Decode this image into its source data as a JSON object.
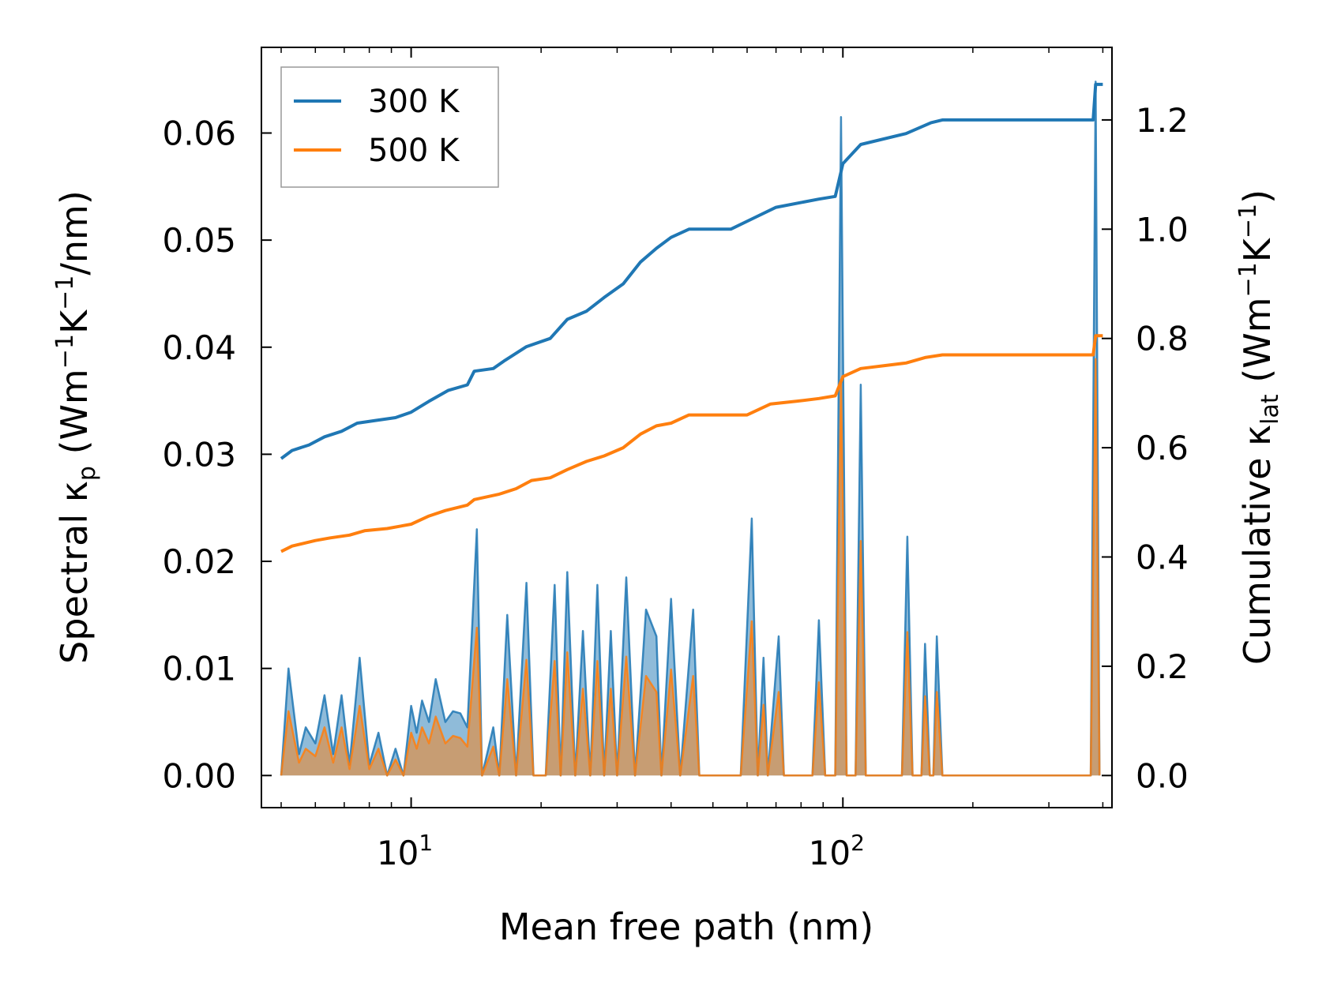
{
  "chart_data": {
    "type": "line",
    "xlabel": "Mean free path (nm)",
    "ylabel_left": {
      "main": "Spectral κ",
      "sub": "p",
      "unit_pre": " (Wm",
      "unit_sup1": "−1",
      "unit_mid": "K",
      "unit_sup2": "−1",
      "unit_post": "/nm)"
    },
    "ylabel_right": {
      "main": "Cumulative κ",
      "sub": "lat",
      "unit_pre": " (Wm",
      "unit_sup1": "−1",
      "unit_mid": "K",
      "unit_sup2": "−1",
      "unit_post": ")"
    },
    "xscale": "log",
    "xlim": [
      4.5,
      420
    ],
    "ylim_left": [
      -0.003,
      0.068
    ],
    "ylim_right": [
      -0.0588,
      1.3328
    ],
    "xticks": [
      {
        "value": 10,
        "base": "10",
        "exp": "1"
      },
      {
        "value": 100,
        "base": "10",
        "exp": "2"
      }
    ],
    "yticks_left": [
      {
        "value": 0.0,
        "label": "0.00"
      },
      {
        "value": 0.01,
        "label": "0.01"
      },
      {
        "value": 0.02,
        "label": "0.02"
      },
      {
        "value": 0.03,
        "label": "0.03"
      },
      {
        "value": 0.04,
        "label": "0.04"
      },
      {
        "value": 0.05,
        "label": "0.05"
      },
      {
        "value": 0.06,
        "label": "0.06"
      }
    ],
    "yticks_right": [
      {
        "value": 0.0,
        "label": "0.0"
      },
      {
        "value": 0.2,
        "label": "0.2"
      },
      {
        "value": 0.4,
        "label": "0.4"
      },
      {
        "value": 0.6,
        "label": "0.6"
      },
      {
        "value": 0.8,
        "label": "0.8"
      },
      {
        "value": 1.0,
        "label": "1.0"
      },
      {
        "value": 1.2,
        "label": "1.2"
      }
    ],
    "legend": {
      "position": "top-left",
      "entries": [
        "300 K",
        "500 K"
      ]
    },
    "series": [
      {
        "name": "300 K",
        "color": "#1f77b4",
        "cumulative": [
          [
            5.0,
            0.58
          ],
          [
            5.3,
            0.595
          ],
          [
            5.8,
            0.605
          ],
          [
            6.3,
            0.62
          ],
          [
            6.9,
            0.63
          ],
          [
            7.5,
            0.645
          ],
          [
            8.3,
            0.65
          ],
          [
            9.2,
            0.655
          ],
          [
            10.0,
            0.665
          ],
          [
            11.0,
            0.685
          ],
          [
            12.2,
            0.705
          ],
          [
            13.5,
            0.715
          ],
          [
            14.0,
            0.74
          ],
          [
            15.5,
            0.745
          ],
          [
            16.5,
            0.76
          ],
          [
            18.5,
            0.785
          ],
          [
            21.0,
            0.8
          ],
          [
            23.0,
            0.835
          ],
          [
            25.5,
            0.85
          ],
          [
            28.0,
            0.875
          ],
          [
            31.0,
            0.9
          ],
          [
            34.0,
            0.94
          ],
          [
            37.0,
            0.965
          ],
          [
            40.0,
            0.985
          ],
          [
            44.0,
            1.0
          ],
          [
            55.0,
            1.0
          ],
          [
            62.0,
            1.02
          ],
          [
            70.0,
            1.04
          ],
          [
            88.0,
            1.055
          ],
          [
            96.0,
            1.06
          ],
          [
            100.0,
            1.12
          ],
          [
            110.0,
            1.155
          ],
          [
            140.0,
            1.175
          ],
          [
            160.0,
            1.195
          ],
          [
            170.0,
            1.2
          ],
          [
            380.0,
            1.2
          ],
          [
            385.0,
            1.265
          ],
          [
            400.0,
            1.265
          ]
        ],
        "spectral": [
          [
            5.0,
            0.0
          ],
          [
            5.2,
            0.01
          ],
          [
            5.5,
            0.002
          ],
          [
            5.7,
            0.0045
          ],
          [
            6.0,
            0.003
          ],
          [
            6.3,
            0.0075
          ],
          [
            6.6,
            0.002
          ],
          [
            6.9,
            0.0075
          ],
          [
            7.2,
            0.001
          ],
          [
            7.6,
            0.011
          ],
          [
            8.0,
            0.001
          ],
          [
            8.4,
            0.004
          ],
          [
            8.8,
            0.0
          ],
          [
            9.2,
            0.0025
          ],
          [
            9.6,
            0.0
          ],
          [
            10.0,
            0.0065
          ],
          [
            10.3,
            0.004
          ],
          [
            10.6,
            0.007
          ],
          [
            11.0,
            0.005
          ],
          [
            11.4,
            0.009
          ],
          [
            12.0,
            0.005
          ],
          [
            12.5,
            0.006
          ],
          [
            13.0,
            0.0058
          ],
          [
            13.5,
            0.0045
          ],
          [
            14.2,
            0.023
          ],
          [
            14.6,
            0.0
          ],
          [
            15.5,
            0.0045
          ],
          [
            16.0,
            0.0
          ],
          [
            16.7,
            0.015
          ],
          [
            17.5,
            0.0
          ],
          [
            18.5,
            0.018
          ],
          [
            19.2,
            0.0
          ],
          [
            20.5,
            0.0
          ],
          [
            21.5,
            0.0178
          ],
          [
            22.2,
            0.0
          ],
          [
            23.0,
            0.019
          ],
          [
            24.0,
            0.0
          ],
          [
            25.0,
            0.0135
          ],
          [
            26.0,
            0.0
          ],
          [
            27.0,
            0.0178
          ],
          [
            28.0,
            0.0
          ],
          [
            29.0,
            0.0135
          ],
          [
            30.0,
            0.0
          ],
          [
            31.5,
            0.0185
          ],
          [
            33.0,
            0.0
          ],
          [
            35.0,
            0.0155
          ],
          [
            37.0,
            0.013
          ],
          [
            38.0,
            0.0
          ],
          [
            40.0,
            0.0165
          ],
          [
            42.0,
            0.0
          ],
          [
            45.0,
            0.0155
          ],
          [
            46.5,
            0.0
          ],
          [
            58.0,
            0.0
          ],
          [
            61.5,
            0.024
          ],
          [
            63.5,
            0.0
          ],
          [
            65.5,
            0.011
          ],
          [
            67.0,
            0.0
          ],
          [
            71.0,
            0.013
          ],
          [
            73.0,
            0.0
          ],
          [
            85.0,
            0.0
          ],
          [
            88.0,
            0.0145
          ],
          [
            91.0,
            0.0
          ],
          [
            96.0,
            0.0
          ],
          [
            99.0,
            0.0615
          ],
          [
            102.0,
            0.0
          ],
          [
            107.0,
            0.0
          ],
          [
            110.0,
            0.0365
          ],
          [
            113.0,
            0.0
          ],
          [
            137.0,
            0.0
          ],
          [
            141.0,
            0.0223
          ],
          [
            145.0,
            0.0
          ],
          [
            152.0,
            0.0
          ],
          [
            155.0,
            0.0123
          ],
          [
            159.0,
            0.0
          ],
          [
            162.0,
            0.0
          ],
          [
            165.0,
            0.013
          ],
          [
            170.0,
            0.0
          ],
          [
            375.0,
            0.0
          ],
          [
            385.0,
            0.0648
          ],
          [
            393.0,
            0.0
          ]
        ]
      },
      {
        "name": "500 K",
        "color": "#ff7f0e",
        "cumulative": [
          [
            5.0,
            0.41
          ],
          [
            5.3,
            0.42
          ],
          [
            6.0,
            0.43
          ],
          [
            6.5,
            0.435
          ],
          [
            7.2,
            0.44
          ],
          [
            7.8,
            0.448
          ],
          [
            8.8,
            0.452
          ],
          [
            10.0,
            0.46
          ],
          [
            11.0,
            0.475
          ],
          [
            12.0,
            0.485
          ],
          [
            13.5,
            0.495
          ],
          [
            14.0,
            0.505
          ],
          [
            16.0,
            0.515
          ],
          [
            17.5,
            0.525
          ],
          [
            19.0,
            0.54
          ],
          [
            21.0,
            0.545
          ],
          [
            23.0,
            0.56
          ],
          [
            25.5,
            0.575
          ],
          [
            28.0,
            0.585
          ],
          [
            31.0,
            0.6
          ],
          [
            34.0,
            0.625
          ],
          [
            37.0,
            0.64
          ],
          [
            40.0,
            0.645
          ],
          [
            44.0,
            0.66
          ],
          [
            60.0,
            0.66
          ],
          [
            68.0,
            0.68
          ],
          [
            78.0,
            0.685
          ],
          [
            88.0,
            0.69
          ],
          [
            96.0,
            0.695
          ],
          [
            100.0,
            0.73
          ],
          [
            110.0,
            0.745
          ],
          [
            140.0,
            0.755
          ],
          [
            155.0,
            0.765
          ],
          [
            170.0,
            0.77
          ],
          [
            380.0,
            0.77
          ],
          [
            385.0,
            0.805
          ],
          [
            400.0,
            0.805
          ]
        ],
        "spectral": [
          [
            5.0,
            0.0
          ],
          [
            5.2,
            0.006
          ],
          [
            5.5,
            0.0012
          ],
          [
            5.7,
            0.0025
          ],
          [
            6.0,
            0.0018
          ],
          [
            6.3,
            0.0045
          ],
          [
            6.6,
            0.0012
          ],
          [
            6.9,
            0.0045
          ],
          [
            7.2,
            0.0006
          ],
          [
            7.6,
            0.0065
          ],
          [
            8.0,
            0.0006
          ],
          [
            8.4,
            0.0025
          ],
          [
            8.8,
            0.0
          ],
          [
            9.2,
            0.0015
          ],
          [
            9.6,
            0.0
          ],
          [
            10.0,
            0.004
          ],
          [
            10.3,
            0.0025
          ],
          [
            10.6,
            0.0045
          ],
          [
            11.0,
            0.003
          ],
          [
            11.4,
            0.0055
          ],
          [
            12.0,
            0.003
          ],
          [
            12.5,
            0.0037
          ],
          [
            13.0,
            0.0035
          ],
          [
            13.5,
            0.0027
          ],
          [
            14.2,
            0.0138
          ],
          [
            14.6,
            0.0
          ],
          [
            15.5,
            0.0027
          ],
          [
            16.0,
            0.0
          ],
          [
            16.7,
            0.009
          ],
          [
            17.5,
            0.0
          ],
          [
            18.5,
            0.0108
          ],
          [
            19.2,
            0.0
          ],
          [
            20.5,
            0.0
          ],
          [
            21.5,
            0.0107
          ],
          [
            22.2,
            0.0
          ],
          [
            23.0,
            0.0115
          ],
          [
            24.0,
            0.0
          ],
          [
            25.0,
            0.0081
          ],
          [
            26.0,
            0.0
          ],
          [
            27.0,
            0.0107
          ],
          [
            28.0,
            0.0
          ],
          [
            29.0,
            0.0081
          ],
          [
            30.0,
            0.0
          ],
          [
            31.5,
            0.0111
          ],
          [
            33.0,
            0.0
          ],
          [
            35.0,
            0.0093
          ],
          [
            37.0,
            0.0078
          ],
          [
            38.0,
            0.0
          ],
          [
            40.0,
            0.0099
          ],
          [
            42.0,
            0.0
          ],
          [
            45.0,
            0.0093
          ],
          [
            46.5,
            0.0
          ],
          [
            58.0,
            0.0
          ],
          [
            61.5,
            0.0144
          ],
          [
            63.5,
            0.0
          ],
          [
            65.5,
            0.0066
          ],
          [
            67.0,
            0.0
          ],
          [
            71.0,
            0.0078
          ],
          [
            73.0,
            0.0
          ],
          [
            85.0,
            0.0
          ],
          [
            88.0,
            0.0087
          ],
          [
            91.0,
            0.0
          ],
          [
            96.0,
            0.0
          ],
          [
            99.0,
            0.0369
          ],
          [
            102.0,
            0.0
          ],
          [
            107.0,
            0.0
          ],
          [
            110.0,
            0.0219
          ],
          [
            113.0,
            0.0
          ],
          [
            137.0,
            0.0
          ],
          [
            141.0,
            0.0134
          ],
          [
            145.0,
            0.0
          ],
          [
            152.0,
            0.0
          ],
          [
            155.0,
            0.0074
          ],
          [
            159.0,
            0.0
          ],
          [
            162.0,
            0.0
          ],
          [
            165.0,
            0.0078
          ],
          [
            170.0,
            0.0
          ],
          [
            375.0,
            0.0
          ],
          [
            385.0,
            0.0389
          ],
          [
            393.0,
            0.0
          ]
        ]
      }
    ]
  }
}
